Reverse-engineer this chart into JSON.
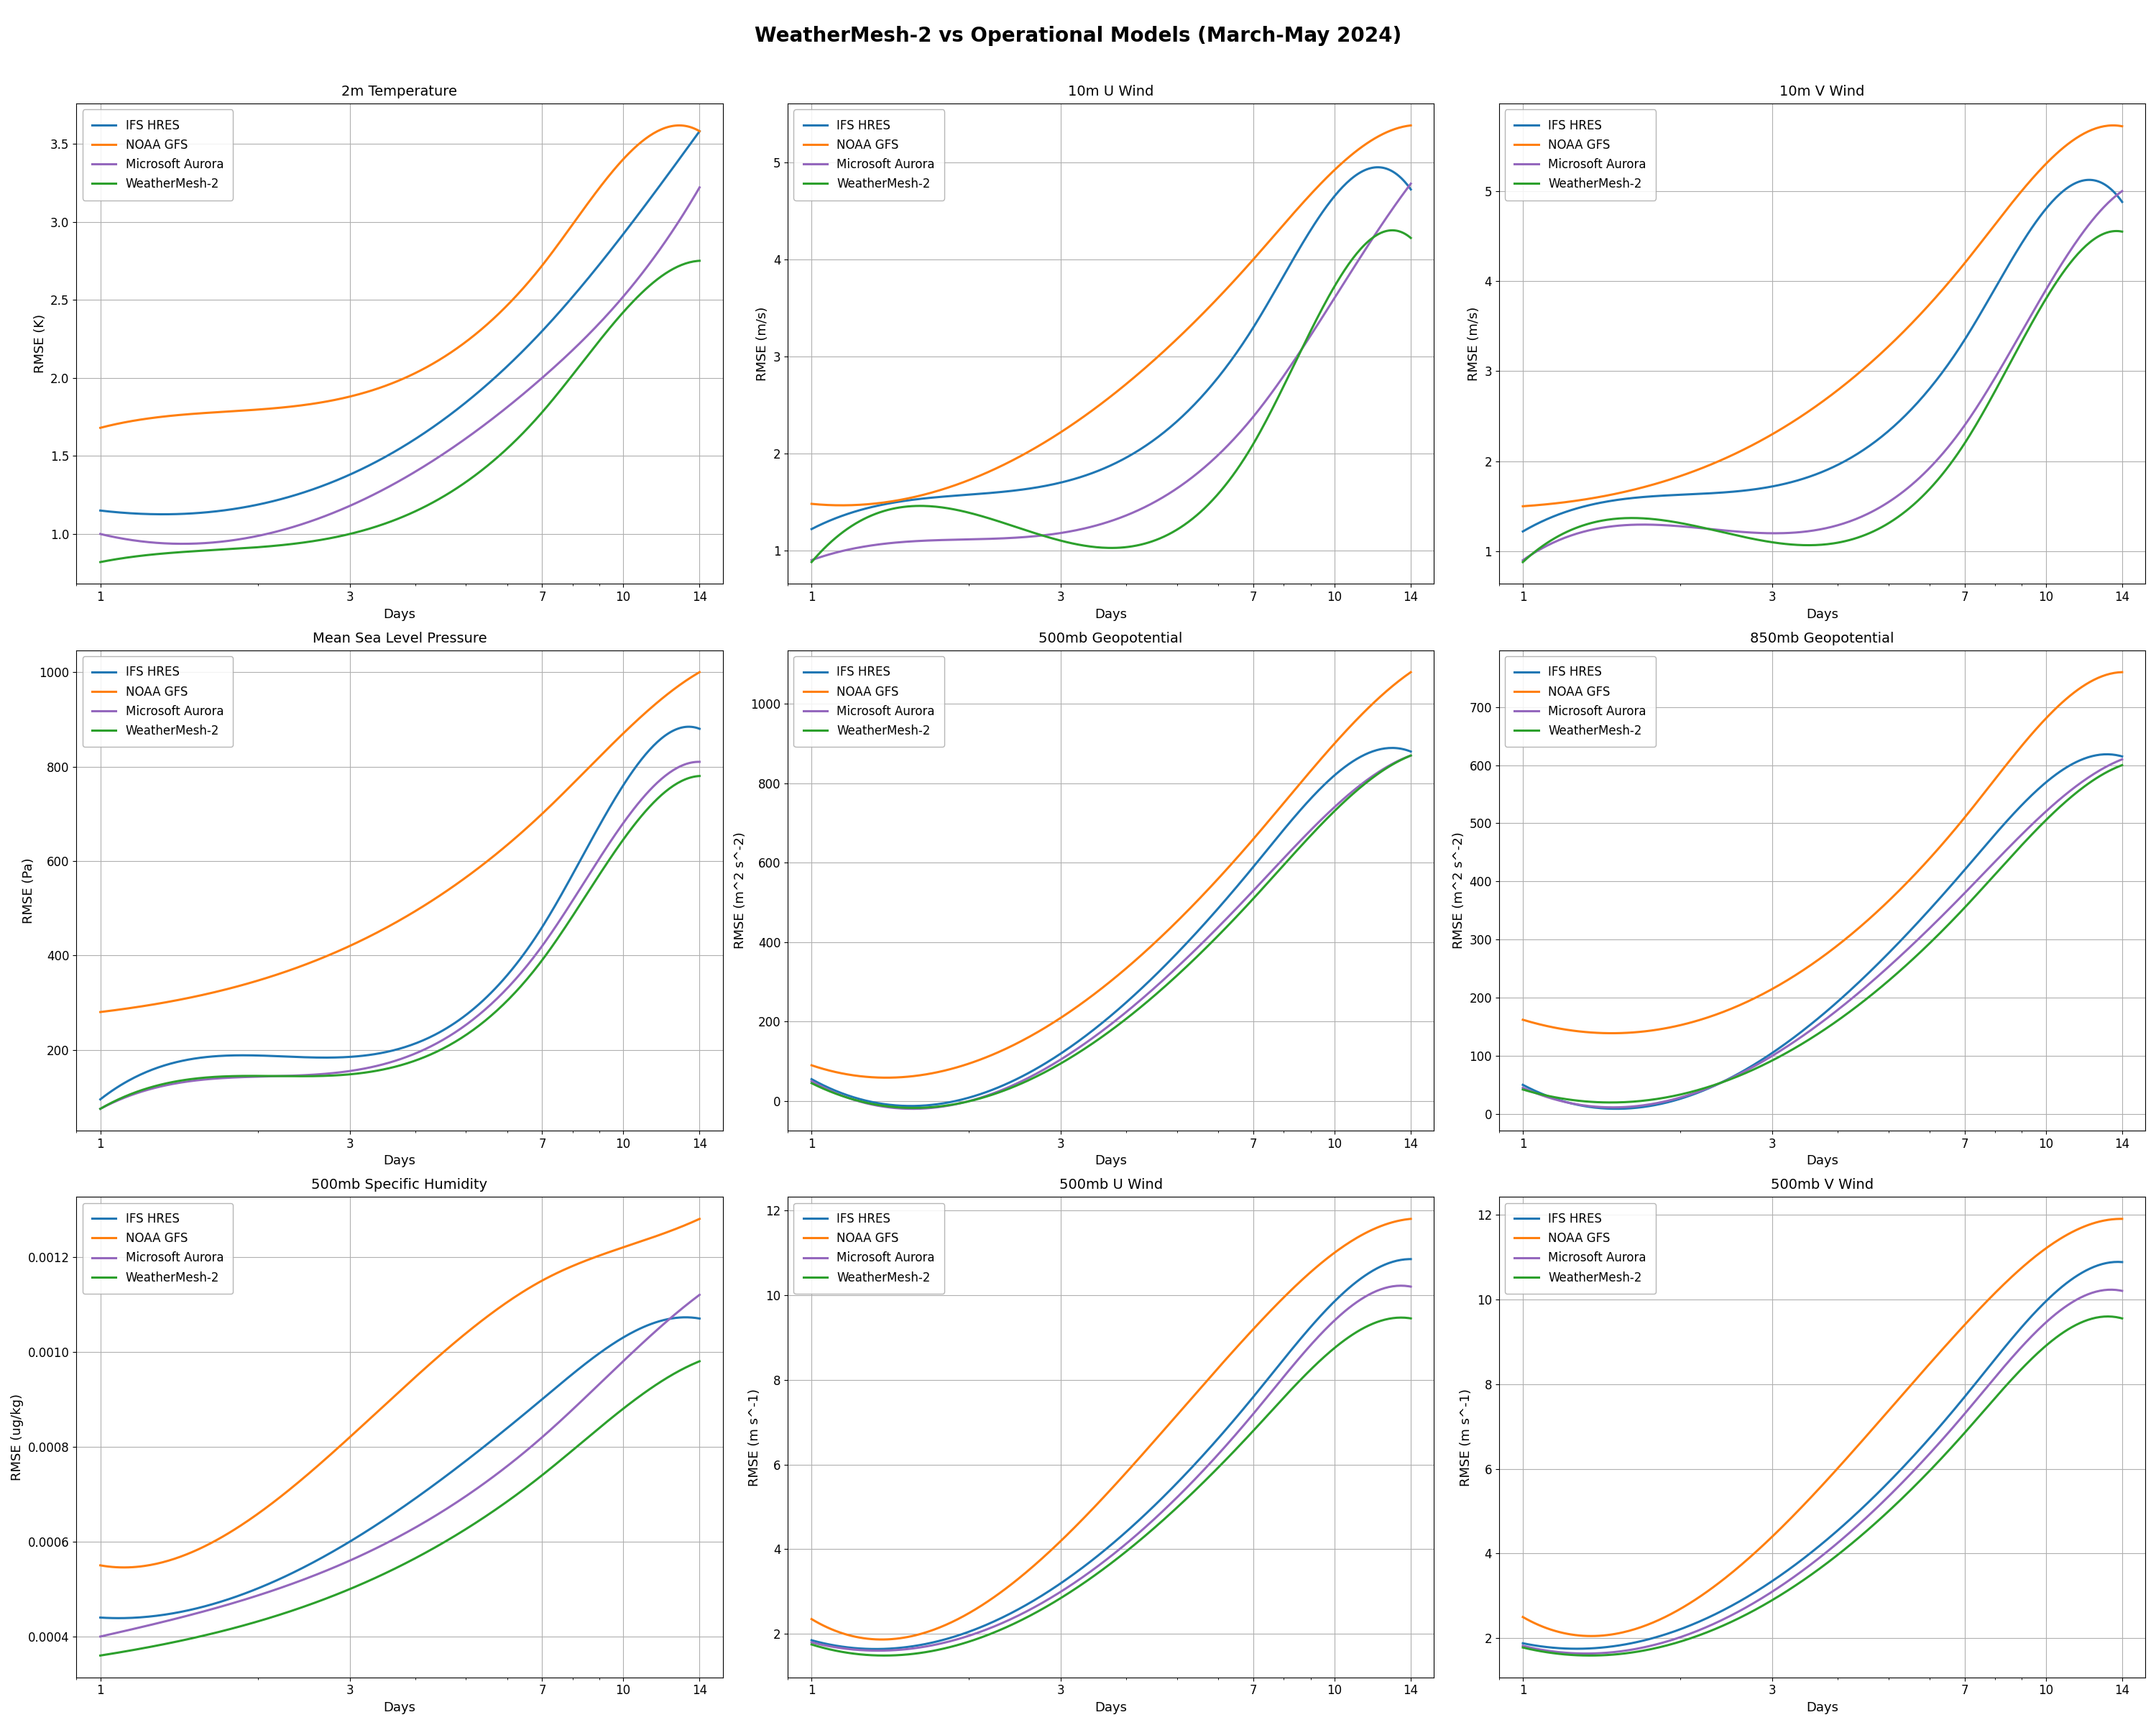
{
  "title": "WeatherMesh-2 vs Operational Models (March-May 2024)",
  "title_fontsize": 20,
  "subplot_title_fontsize": 14,
  "axis_label_fontsize": 13,
  "legend_fontsize": 12,
  "tick_fontsize": 12,
  "colors": {
    "IFS HRES": "#1f77b4",
    "NOAA GFS": "#ff7f0e",
    "Microsoft Aurora": "#9467bd",
    "WeatherMesh-2": "#2ca02c"
  },
  "line_width": 2.2,
  "x_ticks": [
    1,
    3,
    7,
    10,
    14
  ],
  "xlabel": "Days",
  "subplots": [
    {
      "title": "2m Temperature",
      "ylabel": "RMSE (K)",
      "IFS HRES": [
        1.15,
        1.38,
        2.3,
        2.92,
        3.58
      ],
      "NOAA GFS": [
        1.68,
        1.88,
        2.72,
        3.4,
        3.58
      ],
      "Microsoft Aurora": [
        1.0,
        1.18,
        2.0,
        2.52,
        3.22
      ],
      "WeatherMesh-2": [
        0.82,
        1.0,
        1.78,
        2.42,
        2.75
      ]
    },
    {
      "title": "10m U Wind",
      "ylabel": "RMSE (m/s)",
      "IFS HRES": [
        1.22,
        1.7,
        3.3,
        4.65,
        4.72
      ],
      "NOAA GFS": [
        1.48,
        2.22,
        4.0,
        4.92,
        5.38
      ],
      "Microsoft Aurora": [
        0.9,
        1.18,
        2.38,
        3.6,
        4.78
      ],
      "WeatherMesh-2": [
        0.88,
        1.1,
        2.1,
        3.72,
        4.22
      ]
    },
    {
      "title": "10m V Wind",
      "ylabel": "RMSE (m/s)",
      "IFS HRES": [
        1.22,
        1.72,
        3.35,
        4.8,
        4.88
      ],
      "NOAA GFS": [
        1.5,
        2.3,
        4.2,
        5.3,
        5.72
      ],
      "Microsoft Aurora": [
        0.9,
        1.2,
        2.4,
        3.9,
        5.0
      ],
      "WeatherMesh-2": [
        0.88,
        1.1,
        2.2,
        3.8,
        4.55
      ]
    },
    {
      "title": "Mean Sea Level Pressure",
      "ylabel": "RMSE (Pa)",
      "IFS HRES": [
        95,
        185,
        460,
        760,
        880
      ],
      "NOAA GFS": [
        280,
        420,
        700,
        870,
        1000
      ],
      "Microsoft Aurora": [
        75,
        155,
        420,
        680,
        810
      ],
      "WeatherMesh-2": [
        75,
        148,
        390,
        645,
        780
      ]
    },
    {
      "title": "500mb Geopotential",
      "ylabel": "RMSE (m^2 s^-2)",
      "IFS HRES": [
        55,
        120,
        590,
        820,
        880
      ],
      "NOAA GFS": [
        90,
        210,
        660,
        900,
        1080
      ],
      "Microsoft Aurora": [
        50,
        105,
        530,
        740,
        870
      ],
      "WeatherMesh-2": [
        45,
        95,
        510,
        730,
        870
      ]
    },
    {
      "title": "850mb Geopotential",
      "ylabel": "RMSE (m^2 s^-2)",
      "IFS HRES": [
        50,
        105,
        420,
        570,
        615
      ],
      "NOAA GFS": [
        162,
        215,
        510,
        680,
        760
      ],
      "Microsoft Aurora": [
        45,
        100,
        380,
        520,
        610
      ],
      "WeatherMesh-2": [
        42,
        92,
        355,
        505,
        600
      ]
    },
    {
      "title": "500mb Specific Humidity",
      "ylabel": "RMSE (ug/kg)",
      "IFS HRES": [
        0.00044,
        0.0006,
        0.0009,
        0.00103,
        0.00107
      ],
      "NOAA GFS": [
        0.00055,
        0.00082,
        0.00115,
        0.00122,
        0.00128
      ],
      "Microsoft Aurora": [
        0.0004,
        0.00056,
        0.00082,
        0.00098,
        0.00112
      ],
      "WeatherMesh-2": [
        0.00036,
        0.0005,
        0.00074,
        0.00088,
        0.00098
      ]
    },
    {
      "title": "500mb U Wind",
      "ylabel": "RMSE (m s^-1)",
      "IFS HRES": [
        1.85,
        3.2,
        7.6,
        9.85,
        10.85
      ],
      "NOAA GFS": [
        2.35,
        4.2,
        9.2,
        11.0,
        11.8
      ],
      "Microsoft Aurora": [
        1.8,
        3.0,
        7.2,
        9.4,
        10.2
      ],
      "WeatherMesh-2": [
        1.75,
        2.85,
        6.8,
        8.75,
        9.45
      ]
    },
    {
      "title": "500mb V Wind",
      "ylabel": "RMSE (m s^-1)",
      "IFS HRES": [
        1.88,
        3.35,
        7.7,
        9.95,
        10.88
      ],
      "NOAA GFS": [
        2.5,
        4.4,
        9.4,
        11.2,
        11.9
      ],
      "Microsoft Aurora": [
        1.82,
        3.1,
        7.3,
        9.45,
        10.2
      ],
      "WeatherMesh-2": [
        1.78,
        2.9,
        6.85,
        8.9,
        9.55
      ]
    }
  ],
  "background_color": "#ffffff",
  "grid_color": "#b0b0b0",
  "figure_facecolor": "#ffffff"
}
